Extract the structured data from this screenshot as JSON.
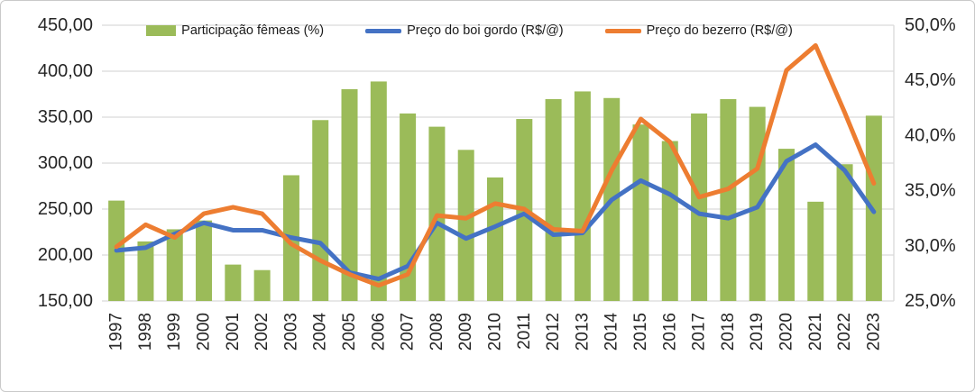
{
  "chart_data": {
    "type": "combo-bar-line",
    "title": "",
    "categories": [
      "1997",
      "1998",
      "1999",
      "2000",
      "2001",
      "2002",
      "2003",
      "2004",
      "2005",
      "2006",
      "2007",
      "2008",
      "2009",
      "2010",
      "2011",
      "2012",
      "2013",
      "2014",
      "2015",
      "2016",
      "2017",
      "2018",
      "2019",
      "2020",
      "2021",
      "2022",
      "2023"
    ],
    "series": [
      {
        "name": "Participação fêmeas (%)",
        "type": "bar",
        "axis": "right",
        "color": "#9BBB59",
        "values": [
          34.1,
          30.4,
          31.5,
          32.3,
          28.3,
          27.8,
          36.4,
          41.4,
          44.2,
          44.9,
          42.0,
          40.8,
          38.7,
          36.2,
          41.5,
          43.3,
          44.0,
          43.4,
          41.0,
          39.5,
          42.0,
          43.3,
          42.6,
          38.8,
          34.0,
          37.4,
          41.8
        ]
      },
      {
        "name": "Preço do boi gordo (R$/@)",
        "type": "line",
        "axis": "left",
        "color": "#4472C4",
        "values": [
          205,
          208,
          223,
          235,
          227,
          227,
          219,
          213,
          181,
          174,
          188,
          235,
          218,
          231,
          245,
          222,
          224,
          260,
          281,
          266,
          245,
          240,
          252,
          302,
          320,
          292,
          247
        ]
      },
      {
        "name": "Preço do bezerro (R$/@)",
        "type": "line",
        "axis": "left",
        "color": "#ED7D31",
        "values": [
          209,
          233,
          219,
          245,
          252,
          245,
          212,
          194,
          179,
          167,
          179,
          243,
          240,
          256,
          250,
          228,
          226,
          292,
          348,
          323,
          263,
          272,
          294,
          401,
          428,
          355,
          278
        ]
      }
    ],
    "left_axis": {
      "min": 150,
      "max": 450,
      "step": 50,
      "tick_labels": [
        "450,00",
        "400,00",
        "350,00",
        "300,00",
        "250,00",
        "200,00",
        "150,00"
      ]
    },
    "right_axis": {
      "min": 25,
      "max": 50,
      "step": 5,
      "tick_labels": [
        "50,0%",
        "45,0%",
        "40,0%",
        "35,0%",
        "30,0%",
        "25,0%"
      ]
    },
    "grid": true,
    "legend_position": "top"
  },
  "colors": {
    "gridline": "#D9D9D9",
    "axis_text": "#262626",
    "background": "#FFFFFF",
    "border": "#C9C9C9"
  }
}
